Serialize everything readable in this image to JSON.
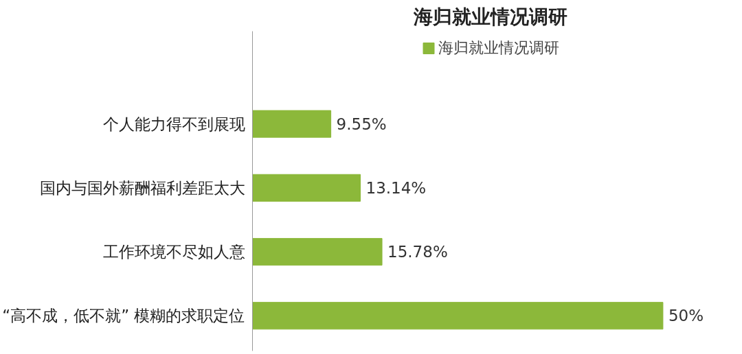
{
  "chart_data": {
    "type": "bar",
    "orientation": "horizontal",
    "title": "海归就业情况调研",
    "categories": [
      "个人能力得不到展现",
      "国内与国外薪酬福利差距太大",
      "工作环境不尽如人意",
      "“高不成，低不就” 模糊的求职定位"
    ],
    "series": [
      {
        "name": "海归就业情况调研",
        "color": "#8cb83a",
        "values": [
          9.55,
          13.14,
          15.78,
          50
        ],
        "value_labels": [
          "9.55%",
          "13.14%",
          "15.78%",
          "50%"
        ]
      }
    ],
    "legend": "top"
  }
}
